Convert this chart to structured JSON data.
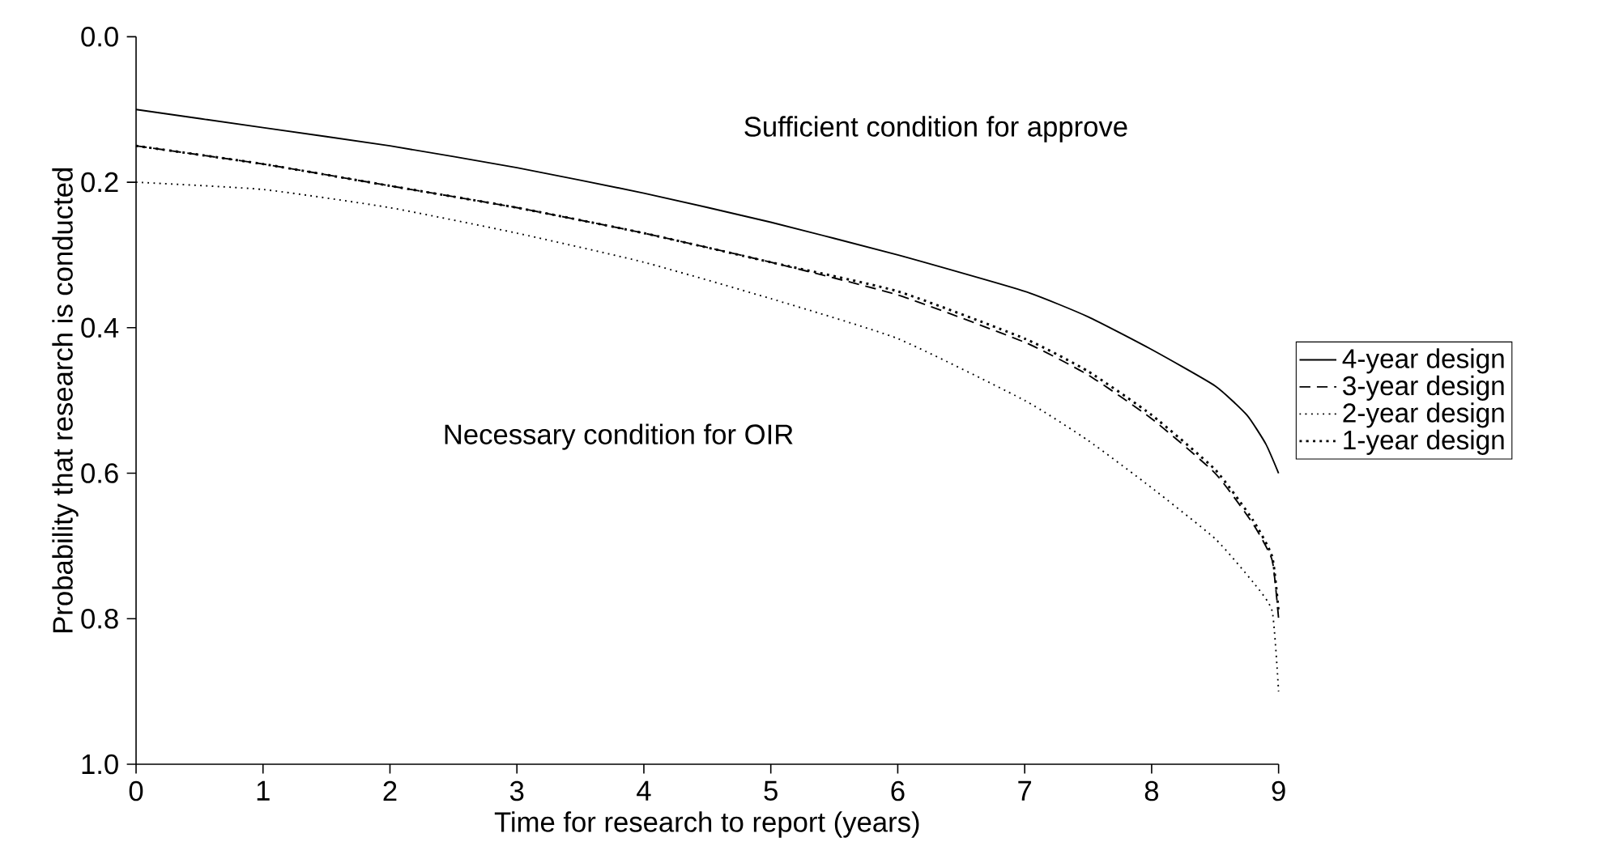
{
  "chart_data": {
    "type": "line",
    "xlabel": "Time for research to report (years)",
    "ylabel": "Probability that research is conducted",
    "annotations": [
      "Sufficient condition for approve",
      "Necessary condition for OIR"
    ],
    "x": [
      0,
      1,
      2,
      3,
      4,
      5,
      6,
      7,
      7.5,
      8,
      8.5,
      8.8,
      8.95,
      9
    ],
    "series": [
      {
        "name": "4-year design",
        "color": "#000000",
        "line_style": "solid",
        "x": [
          0,
          1,
          2,
          3,
          4,
          5,
          6,
          7,
          7.5,
          8,
          8.5,
          8.75,
          8.9,
          9
        ],
        "values": [
          0.1,
          0.125,
          0.15,
          0.18,
          0.215,
          0.255,
          0.3,
          0.35,
          0.385,
          0.43,
          0.48,
          0.52,
          0.56,
          0.6
        ]
      },
      {
        "name": "3-year design",
        "color": "#000000",
        "line_style": "dashed",
        "values": [
          0.15,
          0.175,
          0.205,
          0.235,
          0.27,
          0.31,
          0.355,
          0.42,
          0.465,
          0.525,
          0.6,
          0.67,
          0.72,
          0.8
        ]
      },
      {
        "name": "2-year design",
        "color": "#000000",
        "line_style": "dotted",
        "values": [
          0.2,
          0.21,
          0.235,
          0.27,
          0.31,
          0.36,
          0.415,
          0.5,
          0.555,
          0.62,
          0.69,
          0.75,
          0.79,
          0.9
        ]
      },
      {
        "name": "1-year design",
        "color": "#000000",
        "line_style": "dotted",
        "values": [
          0.15,
          0.175,
          0.205,
          0.235,
          0.27,
          0.31,
          0.35,
          0.415,
          0.46,
          0.52,
          0.595,
          0.665,
          0.715,
          0.79
        ]
      }
    ],
    "xlim": [
      0,
      9
    ],
    "xticks": [
      0,
      1,
      2,
      3,
      4,
      5,
      6,
      7,
      8,
      9
    ],
    "ylim": [
      1.0,
      0.0
    ],
    "yticks": [
      {
        "value": 0,
        "label": "0.0"
      },
      {
        "value": 0.2,
        "label": "0.2"
      },
      {
        "value": 0.4,
        "label": "0.4"
      },
      {
        "value": 0.6,
        "label": "0.6"
      },
      {
        "value": 0.8,
        "label": "0.8"
      },
      {
        "value": 1.0,
        "label": "1.0"
      }
    ],
    "grid": false,
    "legend": "right"
  }
}
